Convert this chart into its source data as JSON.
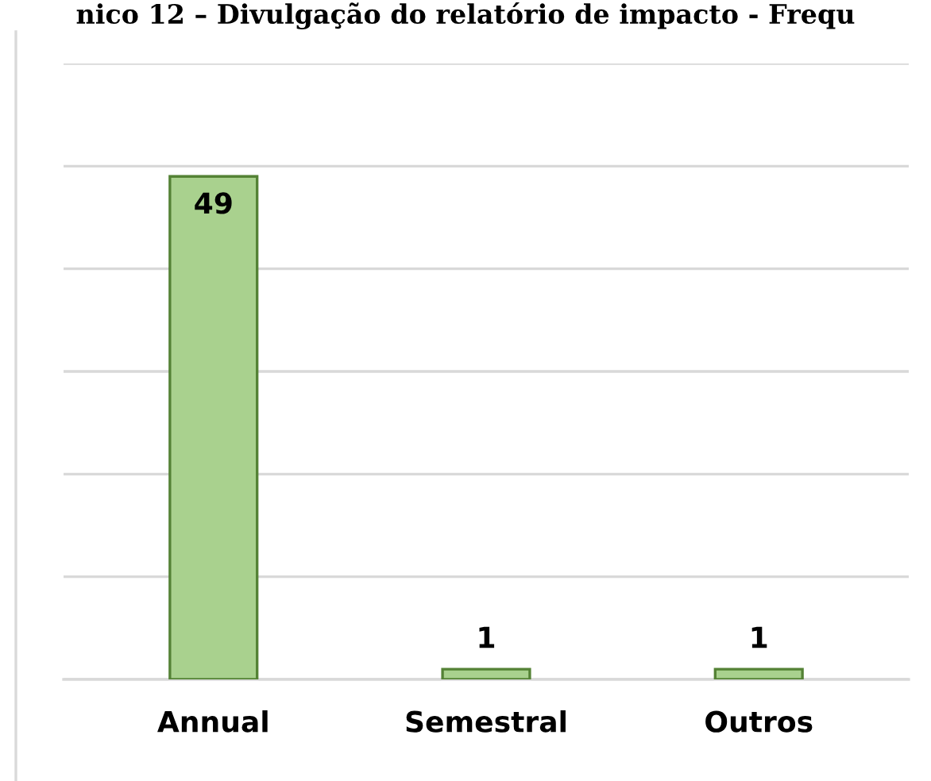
{
  "chart_data": {
    "type": "bar",
    "title": "nico 12 – Divulgação do relatório de impacto - Frequ",
    "categories": [
      "Annual",
      "Semestral",
      "Outros"
    ],
    "values": [
      49,
      1,
      1
    ],
    "color": "#a9d18e",
    "ylim": [
      0,
      60
    ],
    "yticks": [
      {
        "value": 0,
        "label": null
      },
      {
        "value": 10,
        "label": null
      },
      {
        "value": 20,
        "label": null
      },
      {
        "value": 30,
        "label": null
      },
      {
        "value": 40,
        "label": null
      },
      {
        "value": 50,
        "label": null
      },
      {
        "value": 60,
        "label": null
      }
    ],
    "grid": "y",
    "data_labels": true,
    "tick_labels": "x"
  }
}
